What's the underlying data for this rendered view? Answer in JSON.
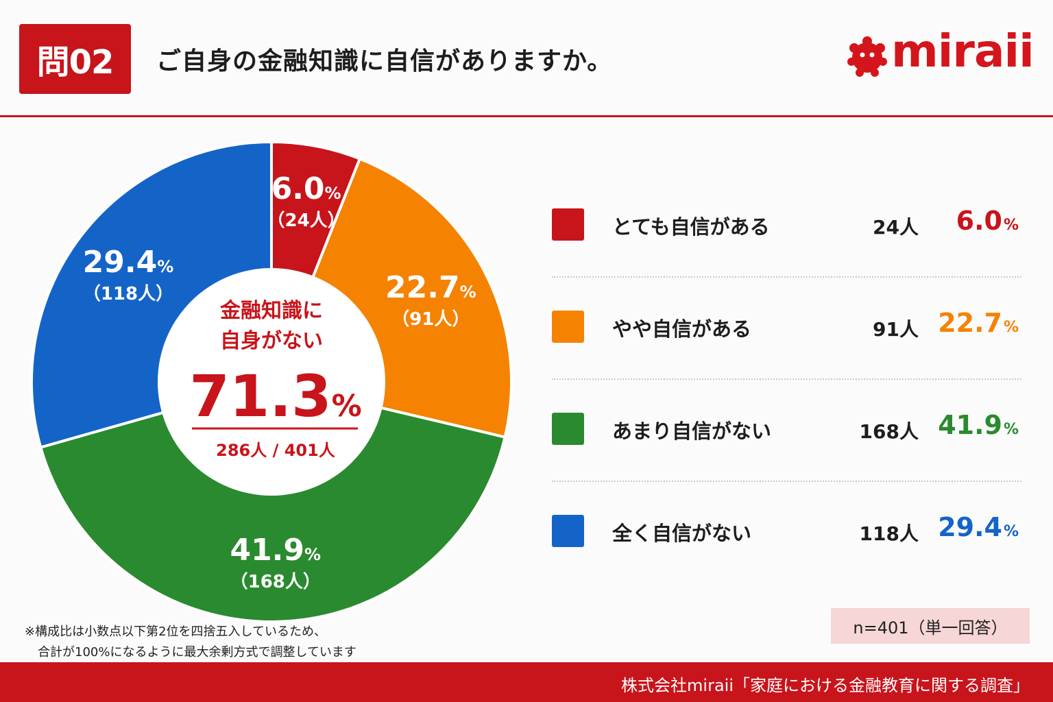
{
  "header": {
    "question_badge": "問02",
    "title": "ご自身の金融知識に自信がありますか。",
    "logo_text": "miraii"
  },
  "chart_data": {
    "type": "pie",
    "style": "donut",
    "total": 401,
    "categories": [
      "とても自信がある",
      "やや自信がある",
      "あまり自信がない",
      "全く自信がない"
    ],
    "values": [
      6.0,
      22.7,
      41.9,
      29.4
    ],
    "counts": [
      24,
      91,
      168,
      118
    ],
    "colors": [
      "#c8141b",
      "#f58200",
      "#2a8a2f",
      "#1464c8"
    ],
    "slice_labels": [
      {
        "pct": "6.0",
        "count": "（24人）"
      },
      {
        "pct": "22.7",
        "count": "（91人）"
      },
      {
        "pct": "41.9",
        "count": "（168人）"
      },
      {
        "pct": "29.4",
        "count": "（118人）"
      }
    ],
    "percent_unit": "%",
    "center": {
      "line1": "金融知識に",
      "line2": "自身がない",
      "value": "71.3",
      "unit": "%",
      "sub": "286人 / 401人"
    }
  },
  "legend": [
    {
      "label": "とても自信がある",
      "count": "24人",
      "pct": "6.0",
      "color": "#c8141b"
    },
    {
      "label": "やや自信がある",
      "count": "91人",
      "pct": "22.7",
      "color": "#f58200"
    },
    {
      "label": "あまり自信がない",
      "count": "168人",
      "pct": "41.9",
      "color": "#2a8a2f"
    },
    {
      "label": "全く自信がない",
      "count": "118人",
      "pct": "29.4",
      "color": "#1464c8"
    }
  ],
  "footnote": {
    "line1": "※構成比は小数点以下第2位を四捨五入しているため、",
    "line2": "合計が100%になるように最大余剰方式で調整しています"
  },
  "sample": "n=401（単一回答）",
  "footer": "株式会社miraii「家庭における金融教育に関する調査」",
  "accent_color": "#c8141b"
}
